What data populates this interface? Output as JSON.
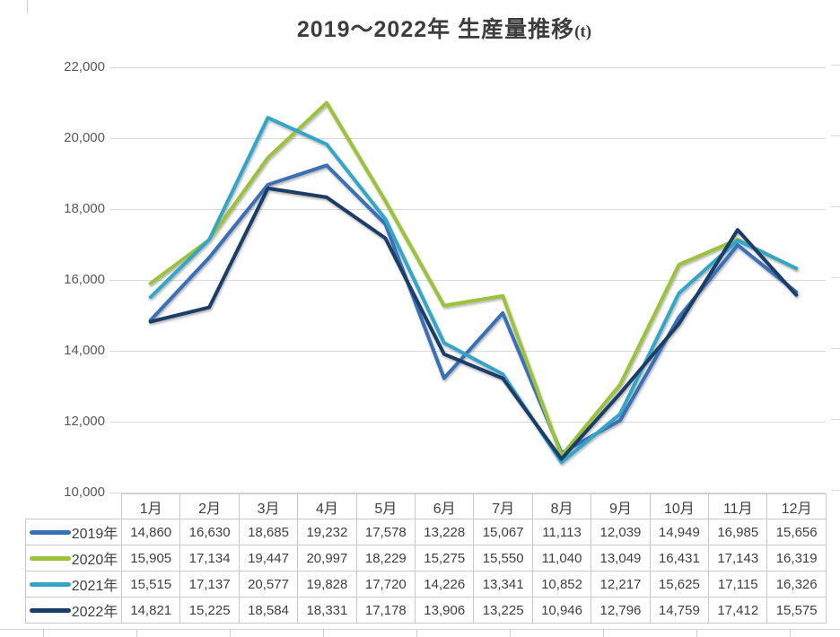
{
  "title": {
    "text": "2019～2022年 生産量推移",
    "unit": "(t)"
  },
  "chart_data": {
    "type": "line",
    "categories": [
      "1月",
      "2月",
      "3月",
      "4月",
      "5月",
      "6月",
      "7月",
      "8月",
      "9月",
      "10月",
      "11月",
      "12月"
    ],
    "series": [
      {
        "name": "2019年",
        "color": "#3A6FB6",
        "values": [
          14860,
          16630,
          18685,
          19232,
          17578,
          13228,
          15067,
          11113,
          12039,
          14949,
          16985,
          15656
        ]
      },
      {
        "name": "2020年",
        "color": "#9CC23C",
        "values": [
          15905,
          17134,
          19447,
          20997,
          18229,
          15275,
          15550,
          11040,
          13049,
          16431,
          17143,
          16319
        ]
      },
      {
        "name": "2021年",
        "color": "#35A5C7",
        "values": [
          15515,
          17137,
          20577,
          19828,
          17720,
          14226,
          13341,
          10852,
          12217,
          15625,
          17115,
          16326
        ]
      },
      {
        "name": "2022年",
        "color": "#1C3D66",
        "values": [
          14821,
          15225,
          18584,
          18331,
          17178,
          13906,
          13225,
          10946,
          12796,
          14759,
          17412,
          15575
        ]
      }
    ],
    "yticks": [
      10000,
      12000,
      14000,
      16000,
      18000,
      20000,
      22000
    ],
    "ylim": [
      10000,
      22000
    ],
    "grid": "horizontal",
    "legend_position": "table-left",
    "xlabel": "",
    "ylabel": ""
  },
  "colors": {
    "gridline": "#d9d9d9",
    "sheet_line": "#d0d0d0",
    "axis_text": "#595959",
    "table_border": "#c9c9c9",
    "title_text": "#3d3d3d"
  }
}
